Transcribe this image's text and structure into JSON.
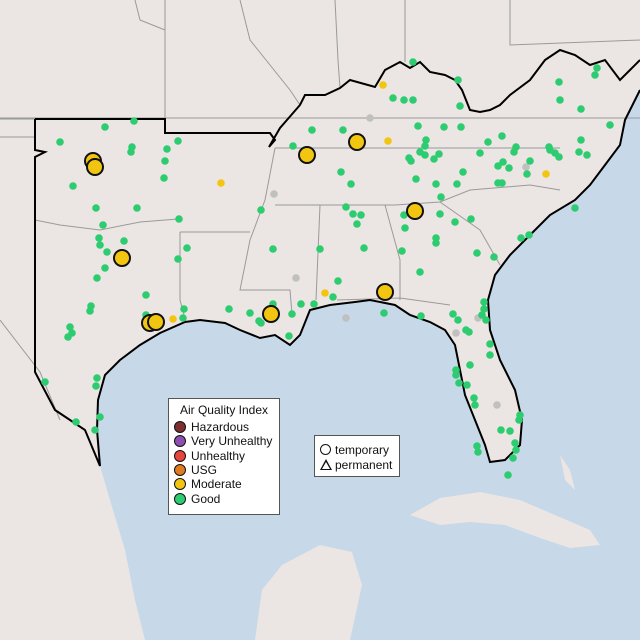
{
  "legend": {
    "title": "Air Quality Index",
    "categories": [
      {
        "label": "Hazardous",
        "color": "#7e2e2e"
      },
      {
        "label": "Very Unhealthy",
        "color": "#8f4fb0"
      },
      {
        "label": "Unhealthy",
        "color": "#e8453c"
      },
      {
        "label": "USG",
        "color": "#e07b20"
      },
      {
        "label": "Moderate",
        "color": "#f2c511"
      },
      {
        "label": "Good",
        "color": "#2ecc71"
      }
    ]
  },
  "site_legend": {
    "temporary": "temporary",
    "permanent": "permanent"
  },
  "colors": {
    "land": "#ebe6e3",
    "water": "#c7d8e8",
    "no_data": "#c0c0c0",
    "region_outline": "#000000"
  }
}
